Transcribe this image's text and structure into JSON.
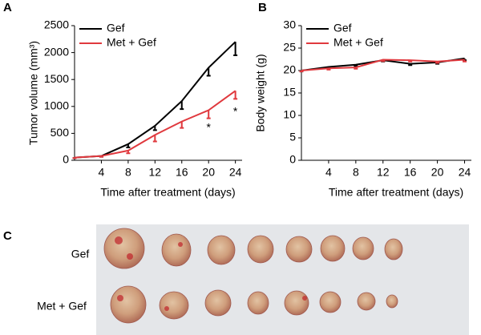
{
  "chart_data": [
    {
      "type": "line",
      "panel": "A",
      "xlabel": "Time after treatment (days)",
      "ylabel": "Tumor volume (mm³)",
      "x": [
        0,
        4,
        8,
        12,
        16,
        20,
        24
      ],
      "xlim": [
        0,
        25
      ],
      "xticks": [
        4,
        8,
        12,
        16,
        20,
        24
      ],
      "ylim": [
        0,
        2500
      ],
      "yticks": [
        0,
        500,
        1000,
        1500,
        2000,
        2500
      ],
      "legend": "upper left",
      "series": [
        {
          "name": "Gef",
          "color": "#000000",
          "values": [
            50,
            80,
            300,
            640,
            1100,
            1720,
            2200
          ],
          "errors": [
            10,
            15,
            60,
            80,
            150,
            150,
            250
          ]
        },
        {
          "name": "Met + Gef",
          "color": "#e0393e",
          "values": [
            50,
            80,
            180,
            470,
            720,
            930,
            1290
          ],
          "errors": [
            10,
            15,
            50,
            120,
            120,
            150,
            150
          ]
        }
      ],
      "annotations": [
        {
          "text": "*",
          "x": 20,
          "y": 595
        },
        {
          "text": "*",
          "x": 24,
          "y": 893
        }
      ]
    },
    {
      "type": "line",
      "panel": "B",
      "xlabel": "Time after treatment (days)",
      "ylabel": "Body weight (g)",
      "x": [
        0,
        4,
        8,
        12,
        16,
        20,
        24
      ],
      "xlim": [
        0,
        25
      ],
      "xticks": [
        4,
        8,
        12,
        16,
        20,
        24
      ],
      "ylim": [
        0,
        30
      ],
      "yticks": [
        0,
        5,
        10,
        15,
        20,
        25,
        30
      ],
      "legend": "upper left",
      "series": [
        {
          "name": "Gef",
          "color": "#000000",
          "values": [
            20,
            20.8,
            21.3,
            22.3,
            21.5,
            21.8,
            22.7
          ],
          "errors": [
            0.2,
            0.3,
            0.3,
            0.3,
            0.3,
            0.3,
            0.4
          ]
        },
        {
          "name": "Met + Gef",
          "color": "#e0393e",
          "values": [
            20,
            20.5,
            20.7,
            22.4,
            22.3,
            22,
            22.4
          ],
          "errors": [
            0.2,
            0.3,
            0.3,
            0.3,
            0.3,
            0.3,
            0.4
          ]
        }
      ],
      "annotations": []
    }
  ],
  "photo": {
    "panel": "C",
    "rows": [
      "Gef",
      "Met + Gef"
    ]
  }
}
